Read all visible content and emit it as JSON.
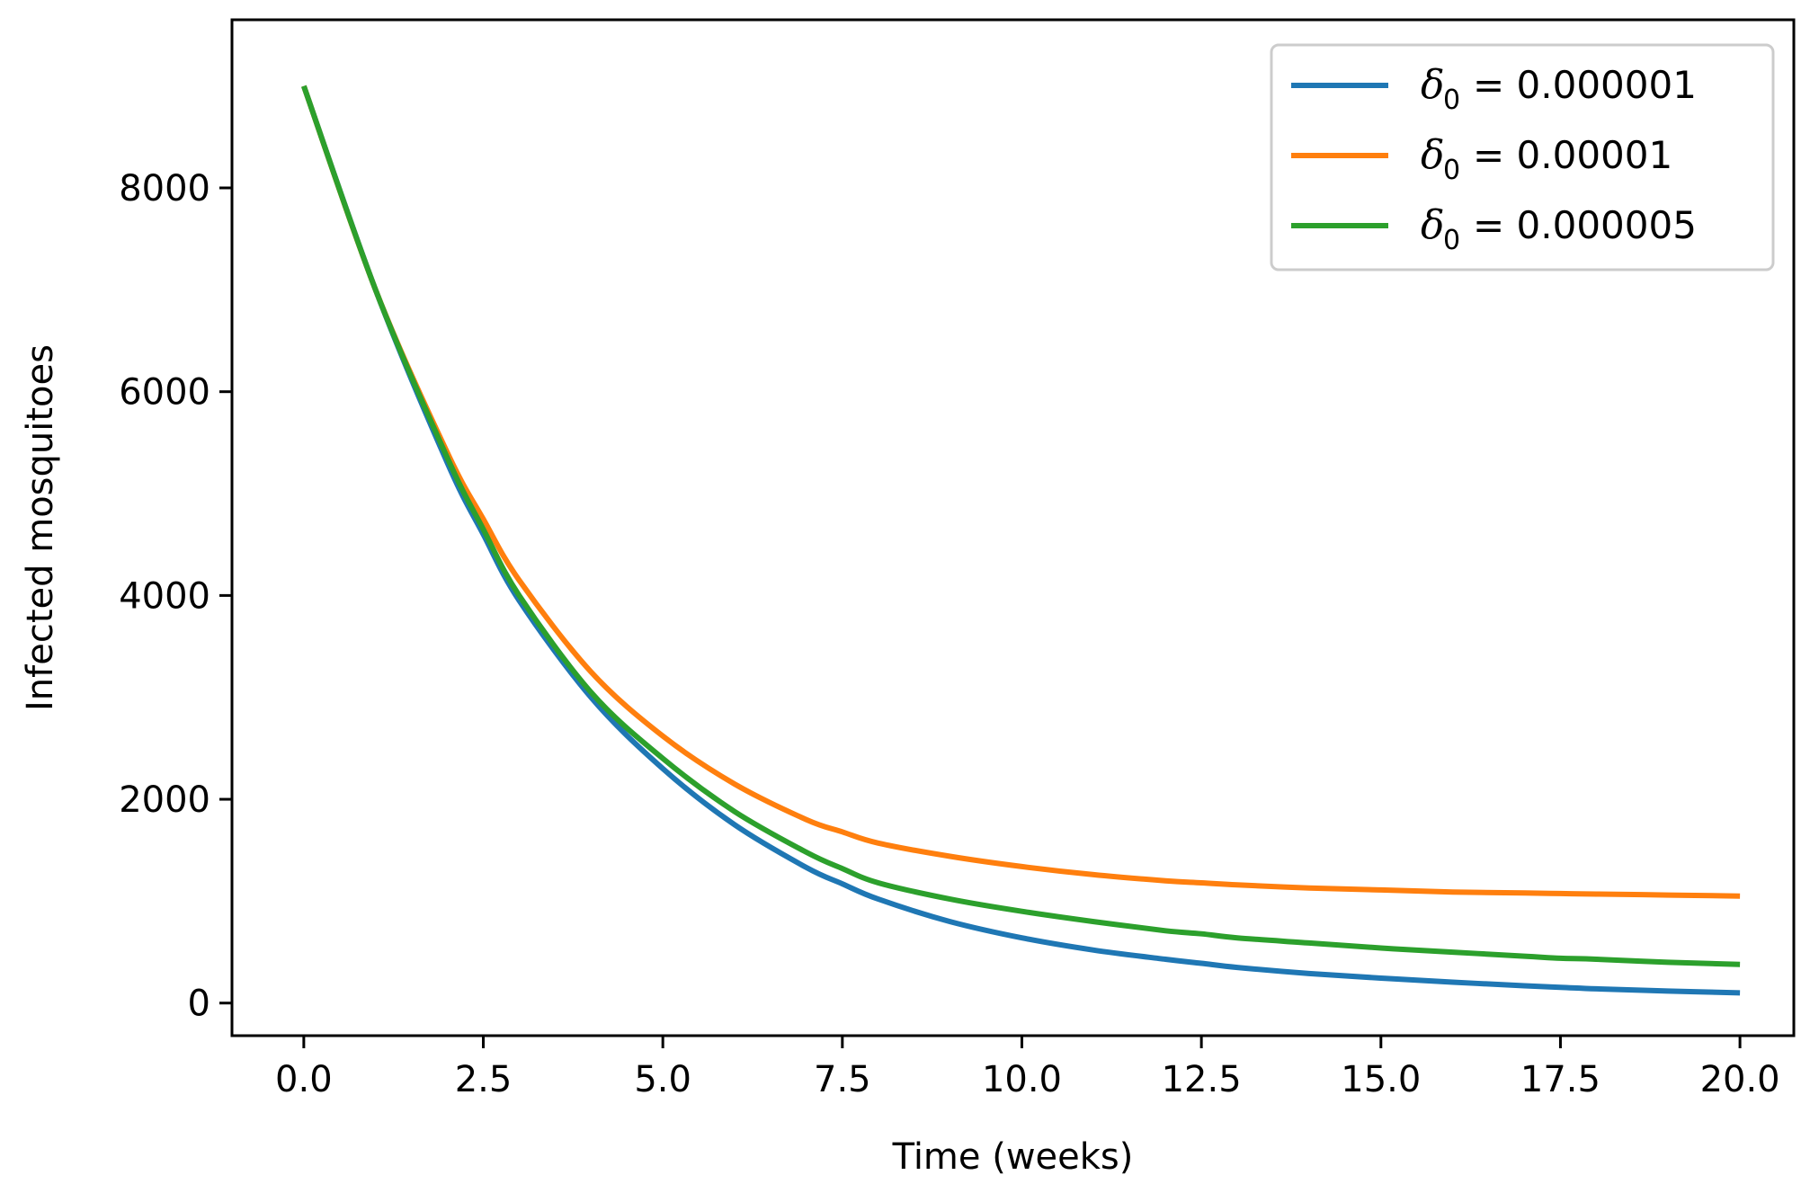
{
  "chart_data": {
    "type": "line",
    "xlabel": "Time (weeks)",
    "ylabel": "Infected mosquitoes",
    "xlim": [
      -1,
      20.75
    ],
    "ylim": [
      -320,
      9650
    ],
    "xticks": [
      0.0,
      2.5,
      5.0,
      7.5,
      10.0,
      12.5,
      15.0,
      17.5,
      20.0
    ],
    "xtick_labels": [
      "0.0",
      "2.5",
      "5.0",
      "7.5",
      "10.0",
      "12.5",
      "15.0",
      "17.5",
      "20.0"
    ],
    "yticks": [
      0,
      2000,
      4000,
      6000,
      8000
    ],
    "ytick_labels": [
      "0",
      "2000",
      "4000",
      "6000",
      "8000"
    ],
    "grid": false,
    "legend_position": "top-right",
    "x": [
      0,
      1,
      2,
      2.5,
      3,
      4,
      5,
      6,
      7,
      7.5,
      8,
      9,
      10,
      11,
      12,
      12.5,
      13,
      14,
      15,
      16,
      17,
      17.5,
      18,
      19,
      20
    ],
    "series": [
      {
        "name": "δ0 = 0.000001",
        "legend_symbol": "δ",
        "legend_subscript": "0",
        "legend_value": "= 0.000001",
        "color": "#1f77b4",
        "values": [
          9000,
          7000,
          5300,
          4600,
          3950,
          3000,
          2300,
          1750,
          1330,
          1170,
          1020,
          800,
          640,
          520,
          430,
          390,
          350,
          290,
          245,
          205,
          170,
          155,
          140,
          118,
          100
        ]
      },
      {
        "name": "δ0 = 0.00001",
        "legend_symbol": "δ",
        "legend_subscript": "0",
        "legend_value": "= 0.00001",
        "color": "#ff7f0e",
        "values": [
          9000,
          7000,
          5400,
          4750,
          4150,
          3250,
          2620,
          2150,
          1800,
          1680,
          1570,
          1440,
          1340,
          1260,
          1200,
          1180,
          1160,
          1130,
          1110,
          1090,
          1080,
          1075,
          1070,
          1060,
          1050
        ]
      },
      {
        "name": "δ0 = 0.000005",
        "legend_symbol": "δ",
        "legend_subscript": "0",
        "legend_value": "= 0.000005",
        "color": "#2ca02c",
        "values": [
          9000,
          7000,
          5350,
          4650,
          4000,
          3050,
          2400,
          1880,
          1480,
          1320,
          1180,
          1020,
          900,
          800,
          710,
          680,
          640,
          590,
          540,
          500,
          460,
          440,
          430,
          400,
          380
        ]
      }
    ]
  }
}
